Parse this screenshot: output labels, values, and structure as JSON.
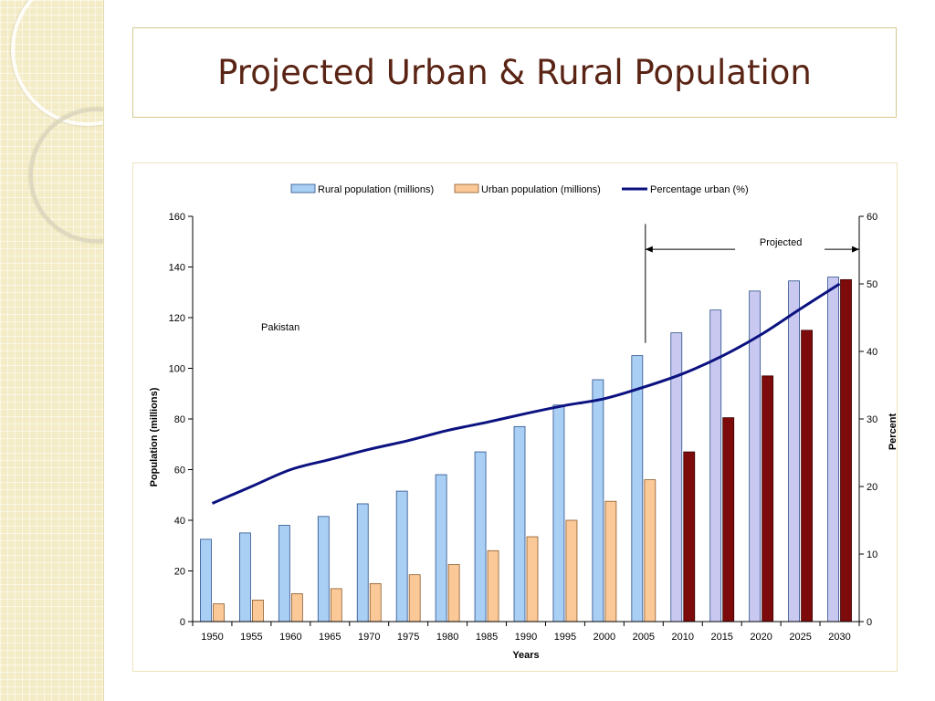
{
  "slide": {
    "title": "Projected Urban & Rural Population"
  },
  "chart_data": {
    "type": "bar",
    "title": "",
    "annotation": "Pakistan",
    "projected_label": "Projected",
    "xlabel": "Years",
    "ylabel": "Population (millions)",
    "y2label": "Percent",
    "categories": [
      "1950",
      "1955",
      "1960",
      "1965",
      "1970",
      "1975",
      "1980",
      "1985",
      "1990",
      "1995",
      "2000",
      "2005",
      "2010",
      "2015",
      "2020",
      "2025",
      "2030"
    ],
    "ylim": [
      0,
      160
    ],
    "yticks": [
      0,
      20,
      40,
      60,
      80,
      100,
      120,
      140,
      160
    ],
    "y2lim": [
      0,
      60
    ],
    "y2ticks": [
      0,
      10,
      20,
      30,
      40,
      50,
      60
    ],
    "projected_from": "2010",
    "series": [
      {
        "name": "Rural population (millions)",
        "axis": "left",
        "kind": "bar",
        "values": [
          32.5,
          35,
          38,
          41.5,
          46.5,
          51.5,
          58,
          67,
          77,
          85.5,
          95.5,
          105,
          114,
          123,
          130.5,
          134.5,
          136
        ]
      },
      {
        "name": "Urban population (millions)",
        "axis": "left",
        "kind": "bar",
        "values": [
          7,
          8.5,
          11,
          13,
          15,
          18.5,
          22.5,
          28,
          33.5,
          40,
          47.5,
          56,
          67,
          80.5,
          97,
          115,
          135
        ]
      },
      {
        "name": "Percentage urban (%)",
        "axis": "right",
        "kind": "line",
        "values": [
          17.5,
          20,
          22.5,
          24,
          25.5,
          26.8,
          28.3,
          29.5,
          30.8,
          32,
          33,
          34.7,
          36.7,
          39.3,
          42.5,
          46.3,
          50
        ]
      }
    ],
    "colors": {
      "rural": "#a9cff5",
      "rural_stroke": "#2a4f8a",
      "urban": "#fbc897",
      "urban_stroke": "#8a5a2a",
      "rural_projected": "#c9c8f1",
      "urban_projected": "#7d0b0b",
      "line": "#0b1280"
    }
  }
}
